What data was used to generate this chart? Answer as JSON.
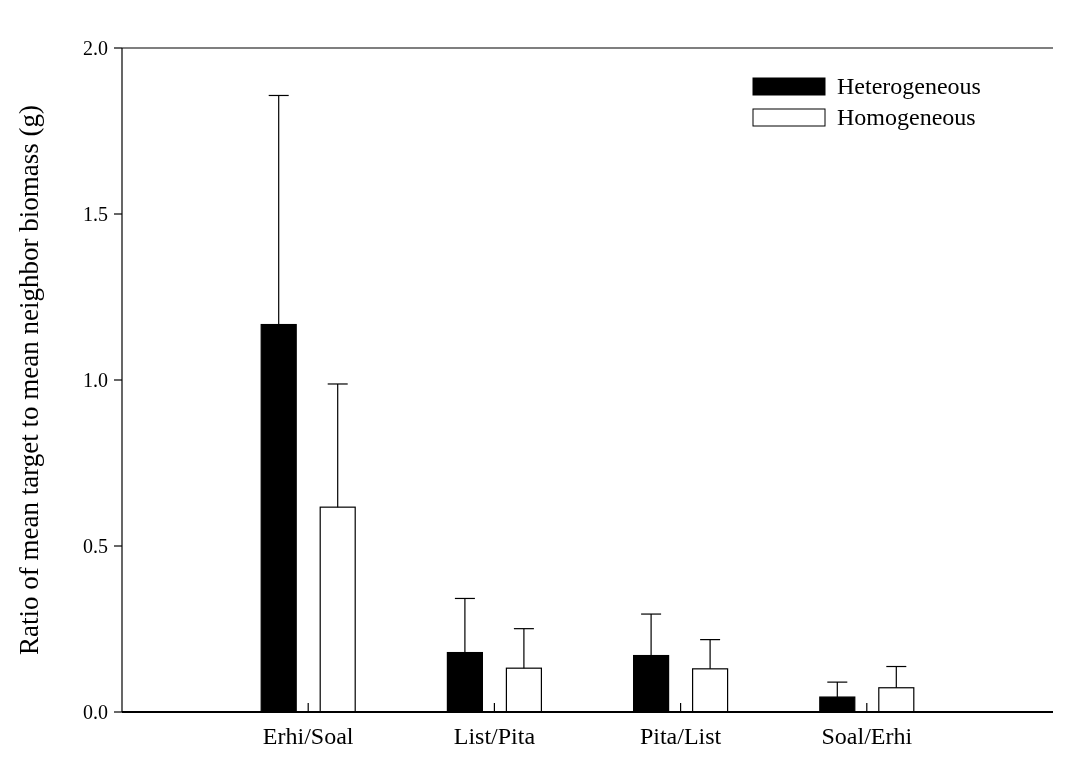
{
  "chart_data": {
    "type": "bar",
    "ylabel": "Ratio of mean target to mean neighbor biomass (g)",
    "categories": [
      "Erhi/Soal",
      "List/Pita",
      "Pita/List",
      "Soal/Erhi"
    ],
    "series": [
      {
        "name": "Heterogeneous",
        "color": "#000000",
        "values": [
          1.167,
          0.179,
          0.17,
          0.045
        ],
        "errors": [
          [
            1.167,
            1.857
          ],
          [
            0.179,
            0.342
          ],
          [
            0.17,
            0.295
          ],
          [
            0.045,
            0.09
          ]
        ]
      },
      {
        "name": "Homogeneous",
        "color": "#ffffff",
        "values": [
          0.617,
          0.132,
          0.13,
          0.073
        ],
        "errors": [
          [
            0.617,
            0.988
          ],
          [
            0.132,
            0.251
          ],
          [
            0.13,
            0.218
          ],
          [
            0.073,
            0.137
          ]
        ]
      }
    ],
    "ylim": [
      0,
      2
    ],
    "yticks": [
      {
        "value": 0,
        "label": "0.0"
      },
      {
        "value": 0.5,
        "label": "0.5"
      },
      {
        "value": 1,
        "label": "1.0"
      },
      {
        "value": 1.5,
        "label": "1.5"
      },
      {
        "value": 2,
        "label": "2.0"
      }
    ],
    "legend": "top right",
    "grid": false
  }
}
